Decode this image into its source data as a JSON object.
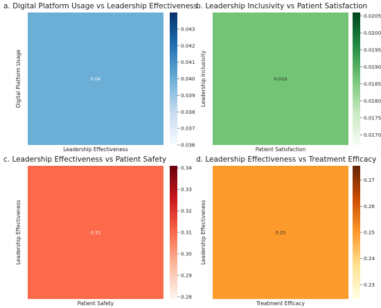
{
  "chart_data": [
    {
      "type": "heatmap",
      "title": "a. Digital Platform Usage vs Leadership Effectiveness",
      "xlabel": "Leadership Effectiveness",
      "ylabel": "Digital Platform Usage",
      "value": 0.04,
      "value_label": "0.04",
      "cell_color": "#6baed6",
      "annot_color": "#ffffff",
      "colormap": "Blues",
      "colorbar_range": [
        0.036,
        0.044
      ],
      "colorbar_ticks": [
        "0.036",
        "0.037",
        "0.038",
        "0.039",
        "0.040",
        "0.041",
        "0.042",
        "0.043"
      ],
      "colorbar_tick_values": [
        0.036,
        0.037,
        0.038,
        0.039,
        0.04,
        0.041,
        0.042,
        0.043
      ],
      "colorbar_colors": [
        "#f7fbff",
        "#c6dbef",
        "#6baed6",
        "#2171b5",
        "#08306b"
      ]
    },
    {
      "type": "heatmap",
      "title": "b. Leadership Inclusivity vs Patient Satisfaction",
      "xlabel": "Patient Satisfaction",
      "ylabel": "Leadership Inclusivity",
      "value": 0.019,
      "value_label": "0.019",
      "cell_color": "#74c476",
      "annot_color": "#222222",
      "colormap": "Greens",
      "colorbar_range": [
        0.0167,
        0.0206
      ],
      "colorbar_ticks": [
        "0.0170",
        "0.0175",
        "0.0180",
        "0.0185",
        "0.0190",
        "0.0195",
        "0.0200",
        "0.0205"
      ],
      "colorbar_tick_values": [
        0.017,
        0.0175,
        0.018,
        0.0185,
        0.019,
        0.0195,
        0.02,
        0.0205
      ],
      "colorbar_colors": [
        "#f7fcf5",
        "#c7e9c0",
        "#74c476",
        "#238b45",
        "#00441b"
      ]
    },
    {
      "type": "heatmap",
      "title": "c. Leadership Effectiveness vs Patient Safety",
      "xlabel": "Patient Safety",
      "ylabel": "Leadership Effectiveness",
      "value": 0.31,
      "value_label": "0.31",
      "cell_color": "#fb6a4a",
      "annot_color": "#ffffff",
      "colormap": "Reds",
      "colorbar_range": [
        0.279,
        0.341
      ],
      "colorbar_ticks": [
        "0.28",
        "0.29",
        "0.30",
        "0.31",
        "0.32",
        "0.33",
        "0.34"
      ],
      "colorbar_tick_values": [
        0.28,
        0.29,
        0.3,
        0.31,
        0.32,
        0.33,
        0.34
      ],
      "colorbar_colors": [
        "#fff5f0",
        "#fcbba1",
        "#fb6a4a",
        "#cb181d",
        "#67000d"
      ]
    },
    {
      "type": "heatmap",
      "title": "d. Leadership Effectiveness vs Treatment Efficacy",
      "xlabel": "Treatment Efficacy",
      "ylabel": "Leadership Effectiveness",
      "value": 0.25,
      "value_label": "0.25",
      "cell_color": "#fd9a2c",
      "annot_color": "#222222",
      "colormap": "YlOrBr",
      "colorbar_range": [
        0.2245,
        0.2755
      ],
      "colorbar_ticks": [
        "0.23",
        "0.24",
        "0.25",
        "0.26",
        "0.27"
      ],
      "colorbar_tick_values": [
        0.23,
        0.24,
        0.25,
        0.26,
        0.27
      ],
      "colorbar_colors": [
        "#ffffe5",
        "#fee391",
        "#fe9929",
        "#cc4c02",
        "#662506"
      ]
    }
  ]
}
